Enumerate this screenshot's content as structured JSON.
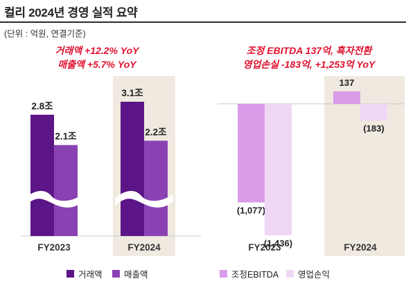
{
  "title": "컬리 2024년 경영 실적 요약",
  "unit_note": "(단위 : 억원, 연결기준)",
  "colors": {
    "gmv": "#5b1586",
    "revenue": "#8a42b3",
    "ebitda": "#d99ce8",
    "operating": "#f0d7f5",
    "highlight_bg": "#efe9e0",
    "headline": "#e0102e"
  },
  "chart_data": [
    {
      "type": "bar",
      "panel": "left",
      "axis_break": true,
      "headline": [
        "거래액 +12.2% YoY",
        "매출액 +5.7% YoY"
      ],
      "categories": [
        "FY2023",
        "FY2024"
      ],
      "highlight_category": "FY2024",
      "series": [
        {
          "name": "거래액",
          "values": [
            2.8,
            3.1
          ],
          "labels": [
            "2.8조",
            "3.1조"
          ]
        },
        {
          "name": "매출액",
          "values": [
            2.1,
            2.2
          ],
          "labels": [
            "2.1조",
            "2.2조"
          ]
        }
      ],
      "legend": [
        "거래액",
        "매출액"
      ]
    },
    {
      "type": "bar",
      "panel": "right",
      "headline": [
        "조정 EBITDA 137억, 흑자전환",
        "영업손실 -183억, +1,253억 YoY"
      ],
      "categories": [
        "FY2023",
        "FY2024"
      ],
      "highlight_category": "FY2024",
      "series": [
        {
          "name": "조정EBITDA",
          "values": [
            -1077,
            137
          ],
          "labels": [
            "(1,077)",
            "137"
          ]
        },
        {
          "name": "영업손익",
          "values": [
            -1436,
            -183
          ],
          "labels": [
            "(1,436)",
            "(183)"
          ]
        }
      ],
      "legend": [
        "조정EBITDA",
        "영업손익"
      ]
    }
  ]
}
